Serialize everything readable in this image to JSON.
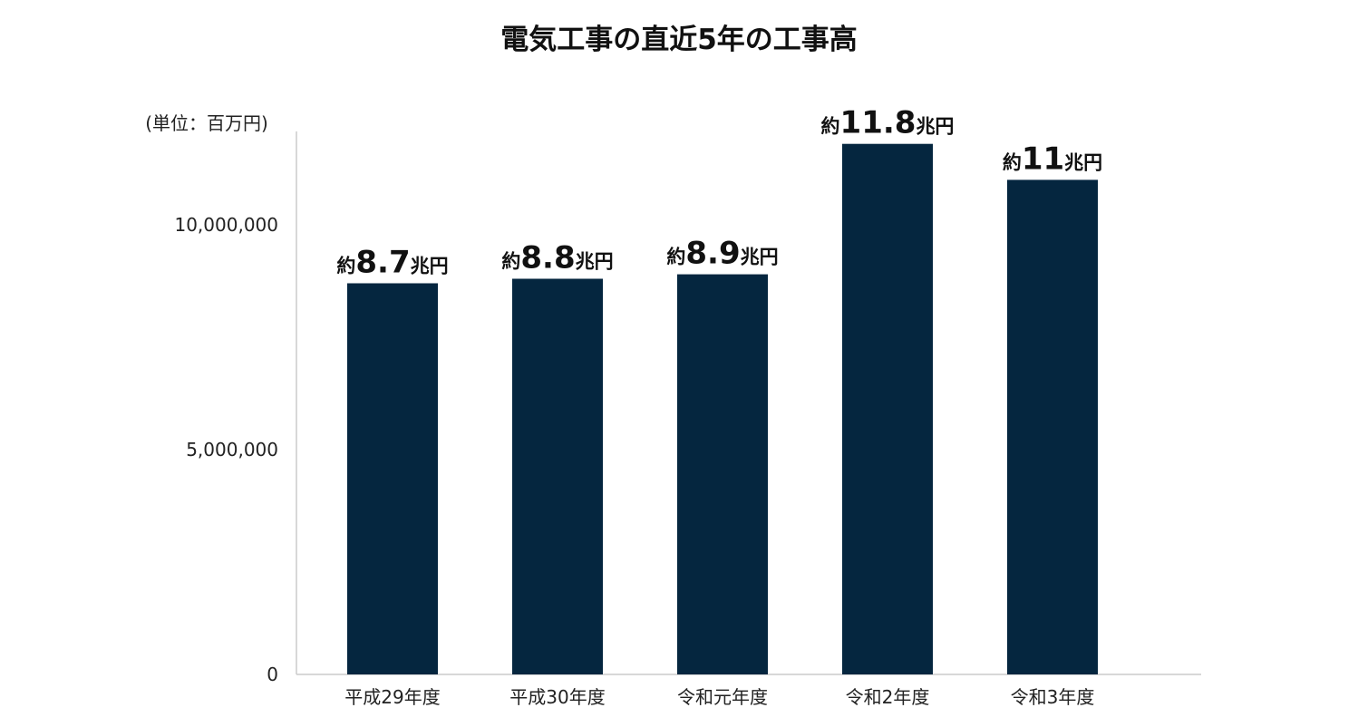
{
  "chart_data": {
    "type": "bar",
    "title": "電気工事の直近5年の工事高",
    "unit_label": "(単位：百万円)",
    "categories": [
      "平成29年度",
      "平成30年度",
      "令和元年度",
      "令和2年度",
      "令和3年度"
    ],
    "values": [
      8700000,
      8800000,
      8900000,
      11800000,
      11000000
    ],
    "data_labels": [
      {
        "prefix": "約",
        "number": "8.7",
        "suffix": "兆円"
      },
      {
        "prefix": "約",
        "number": "8.8",
        "suffix": "兆円"
      },
      {
        "prefix": "約",
        "number": "8.9",
        "suffix": "兆円"
      },
      {
        "prefix": "約",
        "number": "11.8",
        "suffix": "兆円"
      },
      {
        "prefix": "約",
        "number": "11",
        "suffix": "兆円"
      }
    ],
    "yticks": [
      {
        "value": 0,
        "label": "0"
      },
      {
        "value": 5000000,
        "label": "5,000,000"
      },
      {
        "value": 10000000,
        "label": "10,000,000"
      }
    ],
    "ylim": [
      0,
      12000000
    ],
    "xlabel": "",
    "ylabel": "",
    "grid": false,
    "legend": "none",
    "bar_color": "#05263f",
    "axis_color": "#cccccc"
  }
}
